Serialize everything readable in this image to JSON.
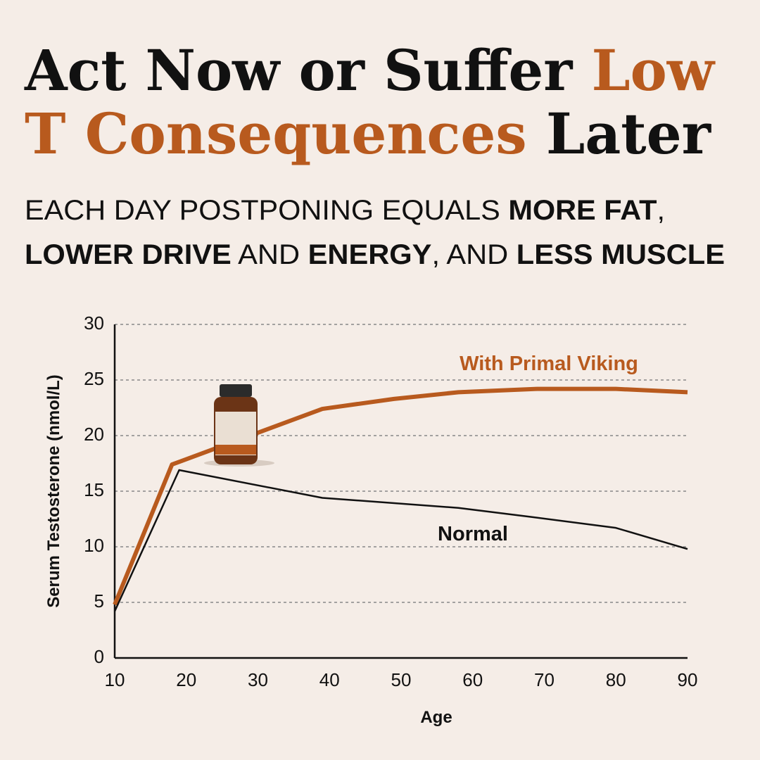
{
  "header": {
    "title": [
      [
        {
          "text": "Act Now or Suffer ",
          "accent": false
        },
        {
          "text": "Low",
          "accent": true
        }
      ],
      [
        {
          "text": "T Consequences",
          "accent": true
        },
        {
          "text": " Later",
          "accent": false
        }
      ]
    ],
    "subtitle": [
      [
        {
          "text": "EACH DAY POSTPONING EQUALS ",
          "bold": false
        },
        {
          "text": "MORE FAT",
          "bold": true
        },
        {
          "text": ",",
          "bold": false
        }
      ],
      [
        {
          "text": "LOWER DRIVE",
          "bold": true
        },
        {
          "text": " AND ",
          "bold": false
        },
        {
          "text": "ENERGY",
          "bold": true
        },
        {
          "text": ", AND ",
          "bold": false
        },
        {
          "text": "LESS MUSCLE",
          "bold": true
        }
      ]
    ],
    "accent_color": "#b85a1e"
  },
  "chart_data": {
    "type": "line",
    "x_label": "Age",
    "y_label": "Serum Testosterone (nmol/L)",
    "series": [
      {
        "name": "With Primal Viking",
        "color": "#b85a1e",
        "x": [
          10,
          18,
          39,
          49,
          58,
          69,
          80,
          90
        ],
        "values": [
          4.8,
          17.4,
          22.4,
          23.3,
          23.9,
          24.2,
          24.2,
          23.9
        ]
      },
      {
        "name": "Normal",
        "color": "#111111",
        "x": [
          10,
          19,
          39,
          58,
          68,
          80,
          90
        ],
        "values": [
          4.2,
          16.9,
          14.4,
          13.5,
          12.7,
          11.7,
          9.8
        ]
      }
    ],
    "xlim": [
      10,
      90
    ],
    "xticks": [
      10,
      20,
      30,
      40,
      50,
      60,
      70,
      80,
      90
    ],
    "ylim": [
      0,
      30
    ],
    "yticks": [
      0,
      5,
      10,
      15,
      20,
      25,
      30
    ],
    "grid": true
  }
}
